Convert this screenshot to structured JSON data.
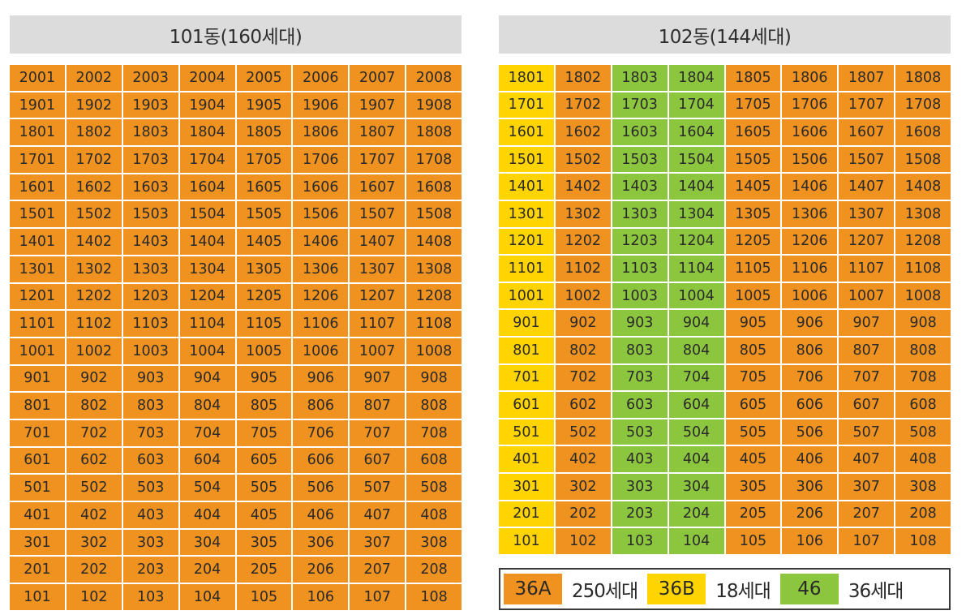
{
  "buildings": [
    {
      "id": "b101",
      "title": "101동(160세대)",
      "rows": [
        [
          "2001",
          "2002",
          "2003",
          "2004",
          "2005",
          "2006",
          "2007",
          "2008"
        ],
        [
          "1901",
          "1902",
          "1903",
          "1904",
          "1905",
          "1906",
          "1907",
          "1908"
        ],
        [
          "1801",
          "1802",
          "1803",
          "1804",
          "1805",
          "1806",
          "1807",
          "1808"
        ],
        [
          "1701",
          "1702",
          "1703",
          "1704",
          "1705",
          "1706",
          "1707",
          "1708"
        ],
        [
          "1601",
          "1602",
          "1603",
          "1604",
          "1605",
          "1606",
          "1607",
          "1608"
        ],
        [
          "1501",
          "1502",
          "1503",
          "1504",
          "1505",
          "1506",
          "1507",
          "1508"
        ],
        [
          "1401",
          "1402",
          "1403",
          "1404",
          "1405",
          "1406",
          "1407",
          "1408"
        ],
        [
          "1301",
          "1302",
          "1303",
          "1304",
          "1305",
          "1306",
          "1307",
          "1308"
        ],
        [
          "1201",
          "1202",
          "1203",
          "1204",
          "1205",
          "1206",
          "1207",
          "1208"
        ],
        [
          "1101",
          "1102",
          "1103",
          "1104",
          "1105",
          "1106",
          "1107",
          "1108"
        ],
        [
          "1001",
          "1002",
          "1003",
          "1004",
          "1005",
          "1006",
          "1007",
          "1008"
        ],
        [
          "901",
          "902",
          "903",
          "904",
          "905",
          "906",
          "907",
          "908"
        ],
        [
          "801",
          "802",
          "803",
          "804",
          "805",
          "806",
          "807",
          "808"
        ],
        [
          "701",
          "702",
          "703",
          "704",
          "705",
          "706",
          "707",
          "708"
        ],
        [
          "601",
          "602",
          "603",
          "604",
          "605",
          "606",
          "607",
          "608"
        ],
        [
          "501",
          "502",
          "503",
          "504",
          "505",
          "506",
          "507",
          "508"
        ],
        [
          "401",
          "402",
          "403",
          "404",
          "405",
          "406",
          "407",
          "408"
        ],
        [
          "301",
          "302",
          "303",
          "304",
          "305",
          "306",
          "307",
          "308"
        ],
        [
          "201",
          "202",
          "203",
          "204",
          "205",
          "206",
          "207",
          "208"
        ],
        [
          "101",
          "102",
          "103",
          "104",
          "105",
          "106",
          "107",
          "108"
        ]
      ],
      "column_types": [
        "36A",
        "36A",
        "36A",
        "36A",
        "36A",
        "36A",
        "36A",
        "36A"
      ]
    },
    {
      "id": "b102",
      "title": "102동(144세대)",
      "rows": [
        [
          "1801",
          "1802",
          "1803",
          "1804",
          "1805",
          "1806",
          "1807",
          "1808"
        ],
        [
          "1701",
          "1702",
          "1703",
          "1704",
          "1705",
          "1706",
          "1707",
          "1708"
        ],
        [
          "1601",
          "1602",
          "1603",
          "1604",
          "1605",
          "1606",
          "1607",
          "1608"
        ],
        [
          "1501",
          "1502",
          "1503",
          "1504",
          "1505",
          "1506",
          "1507",
          "1508"
        ],
        [
          "1401",
          "1402",
          "1403",
          "1404",
          "1405",
          "1406",
          "1407",
          "1408"
        ],
        [
          "1301",
          "1302",
          "1303",
          "1304",
          "1305",
          "1306",
          "1307",
          "1308"
        ],
        [
          "1201",
          "1202",
          "1203",
          "1204",
          "1205",
          "1206",
          "1207",
          "1208"
        ],
        [
          "1101",
          "1102",
          "1103",
          "1104",
          "1105",
          "1106",
          "1107",
          "1108"
        ],
        [
          "1001",
          "1002",
          "1003",
          "1004",
          "1005",
          "1006",
          "1007",
          "1008"
        ],
        [
          "901",
          "902",
          "903",
          "904",
          "905",
          "906",
          "907",
          "908"
        ],
        [
          "801",
          "802",
          "803",
          "804",
          "805",
          "806",
          "807",
          "808"
        ],
        [
          "701",
          "702",
          "703",
          "704",
          "705",
          "706",
          "707",
          "708"
        ],
        [
          "601",
          "602",
          "603",
          "604",
          "605",
          "606",
          "607",
          "608"
        ],
        [
          "501",
          "502",
          "503",
          "504",
          "505",
          "506",
          "507",
          "508"
        ],
        [
          "401",
          "402",
          "403",
          "404",
          "405",
          "406",
          "407",
          "408"
        ],
        [
          "301",
          "302",
          "303",
          "304",
          "305",
          "306",
          "307",
          "308"
        ],
        [
          "201",
          "202",
          "203",
          "204",
          "205",
          "206",
          "207",
          "208"
        ],
        [
          "101",
          "102",
          "103",
          "104",
          "105",
          "106",
          "107",
          "108"
        ]
      ],
      "column_types": [
        "36B",
        "36A",
        "46",
        "46",
        "36A",
        "36A",
        "36A",
        "36A"
      ]
    }
  ],
  "legend": [
    {
      "type": "36A",
      "label": "36A",
      "count": "250세대",
      "color": "#f0921f"
    },
    {
      "type": "36B",
      "label": "36B",
      "count": "18세대",
      "color": "#ffd400"
    },
    {
      "type": "46",
      "label": "46",
      "count": "36세대",
      "color": "#8cc63e"
    }
  ]
}
